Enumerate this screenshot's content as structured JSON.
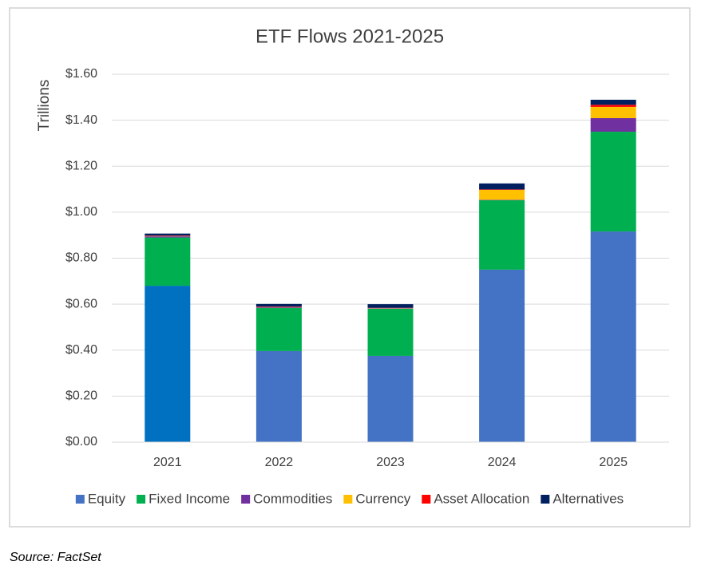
{
  "chart_data": {
    "type": "stacked-bar",
    "title": "ETF Flows 2021-2025",
    "y_label": "Trillions",
    "categories": [
      "2021",
      "2022",
      "2023",
      "2024",
      "2025"
    ],
    "series": [
      {
        "name": "Equity",
        "color": "#4472c4",
        "colors": [
          "#0070c0",
          "#4472c4",
          "#4472c4",
          "#4472c4",
          "#4472c4"
        ],
        "values": [
          0.68,
          0.396,
          0.375,
          0.75,
          0.916
        ]
      },
      {
        "name": "Fixed Income",
        "color": "#00b050",
        "values": [
          0.21,
          0.187,
          0.205,
          0.302,
          0.434
        ]
      },
      {
        "name": "Commodities",
        "color": "#7030a0",
        "values": [
          0.005,
          0.003,
          0.002,
          0.002,
          0.059
        ]
      },
      {
        "name": "Currency",
        "color": "#ffc000",
        "values": [
          0.001,
          0.001,
          0.001,
          0.043,
          0.049
        ]
      },
      {
        "name": "Asset Allocation",
        "color": "#ff0000",
        "values": [
          0.002,
          0.002,
          0.001,
          0.002,
          0.009
        ]
      },
      {
        "name": "Alternatives",
        "color": "#002060",
        "values": [
          0.009,
          0.012,
          0.016,
          0.026,
          0.022
        ]
      }
    ],
    "ylim": [
      0,
      1.6
    ],
    "yticks": [
      {
        "value": 0,
        "label": "$0.00"
      },
      {
        "value": 0.2,
        "label": "$0.20"
      },
      {
        "value": 0.4,
        "label": "$0.40"
      },
      {
        "value": 0.6,
        "label": "$0.60"
      },
      {
        "value": 0.8,
        "label": "$0.80"
      },
      {
        "value": 1.0,
        "label": "$1.00"
      },
      {
        "value": 1.2,
        "label": "$1.20"
      },
      {
        "value": 1.4,
        "label": "$1.40"
      },
      {
        "value": 1.6,
        "label": "$1.60"
      }
    ],
    "grid": true,
    "legend": "bottom",
    "source": "Source: FactSet"
  }
}
